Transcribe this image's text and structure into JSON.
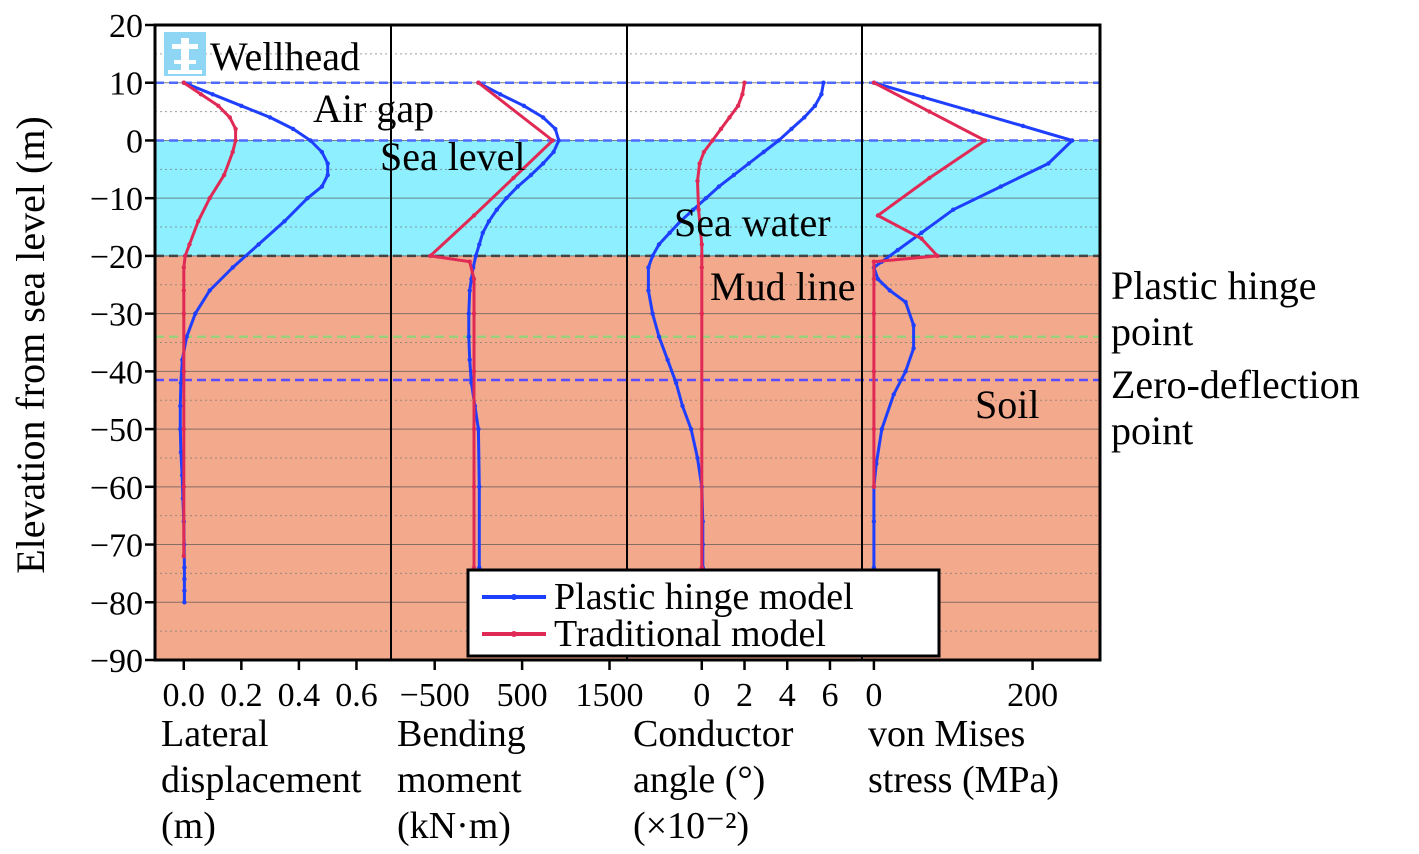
{
  "chart_data": {
    "type": "line",
    "y_axis": {
      "label": "Elevation from sea level (m)",
      "range": [
        -90,
        20
      ],
      "ticks": [
        20,
        10,
        0,
        -10,
        -20,
        -30,
        -40,
        -50,
        -60,
        -70,
        -80,
        -90
      ],
      "tick_labels": [
        "20",
        "10",
        "0",
        "−10",
        "−20",
        "−30",
        "−40",
        "−50",
        "−60",
        "−70",
        "−80",
        "−90"
      ]
    },
    "zones": [
      {
        "name": "Air gap",
        "from": 10,
        "to": 0,
        "color": "#ffffff"
      },
      {
        "name": "Sea water",
        "from": 0,
        "to": -20,
        "color": "#8ef0ff"
      },
      {
        "name": "Soil",
        "from": -20,
        "to": -90,
        "color": "#f3a98c"
      }
    ],
    "reference_lines": [
      {
        "name": "Wellhead",
        "y": 10,
        "color": "#4f6bff"
      },
      {
        "name": "Sea level",
        "y": 0,
        "color": "#4f6bff"
      },
      {
        "name": "Mud line",
        "y": -20,
        "color": "#444444"
      },
      {
        "name": "Plastic hinge point",
        "y": -34,
        "color": "#9bd07a"
      },
      {
        "name": "Zero-deflection point",
        "y": -41.5,
        "color": "#5a4dff"
      }
    ],
    "annotations": {
      "wellhead": "Wellhead",
      "air_gap": "Air gap",
      "sea_level": "Sea level",
      "sea_water": "Sea water",
      "mud_line": "Mud line",
      "soil": "Soil",
      "plastic_hinge_1": "Plastic hinge",
      "plastic_hinge_2": "point",
      "zero_deflection_1": "Zero-deflection",
      "zero_deflection_2": "point"
    },
    "legend": {
      "placement": "bottom-center",
      "entries": [
        {
          "name": "Plastic hinge model",
          "color": "#1f3fff"
        },
        {
          "name": "Traditional model",
          "color": "#e02a55"
        }
      ]
    },
    "panels": [
      {
        "id": "lateral",
        "xlabel_lines": [
          "Lateral",
          "displacement",
          "(m)"
        ],
        "xlim": [
          -0.1,
          0.72
        ],
        "xticks": [
          0.0,
          0.2,
          0.4,
          0.6
        ],
        "xtick_labels": [
          "0.0",
          "0.2",
          "0.4",
          "0.6"
        ],
        "series": [
          {
            "name": "Plastic hinge model",
            "x": [
              0,
              0.1,
              0.2,
              0.3,
              0.38,
              0.44,
              0.48,
              0.5,
              0.5,
              0.48,
              0.43,
              0.35,
              0.26,
              0.17,
              0.09,
              0.04,
              0.01,
              -0.005,
              -0.01,
              -0.012,
              -0.012,
              -0.01,
              -0.006,
              -0.003,
              0,
              0.001,
              0.002,
              0.002,
              0.002,
              0.002
            ],
            "y": [
              10,
              8,
              6,
              4,
              2,
              0,
              -2,
              -4,
              -6,
              -8,
              -10,
              -14,
              -18,
              -22,
              -26,
              -30,
              -34,
              -38,
              -42,
              -46,
              -50,
              -54,
              -58,
              -62,
              -66,
              -70,
              -74,
              -76,
              -78,
              -80
            ]
          },
          {
            "name": "Traditional model",
            "x": [
              0,
              0.06,
              0.12,
              0.16,
              0.18,
              0.18,
              0.17,
              0.14,
              0.09,
              0.05,
              0.02,
              0.005,
              0,
              0,
              0,
              0,
              0,
              0,
              0
            ],
            "y": [
              10,
              8,
              6,
              4,
              2,
              0,
              -2,
              -6,
              -10,
              -14,
              -18,
              -20,
              -22,
              -26,
              -30,
              -40,
              -50,
              -60,
              -72
            ]
          }
        ]
      },
      {
        "id": "bending",
        "xlabel_lines": [
          "Bending",
          "moment",
          "(kN·m)"
        ],
        "xlim": [
          -1000,
          1700
        ],
        "xticks": [
          -500,
          500,
          1500
        ],
        "xtick_labels": [
          "−500",
          "500",
          "1500"
        ],
        "series": [
          {
            "name": "Plastic hinge model",
            "x": [
              0,
              250,
              520,
              740,
              880,
              920,
              860,
              740,
              600,
              450,
              320,
              210,
              120,
              50,
              10,
              -30,
              -60,
              -80,
              -100,
              -110,
              -110,
              -100,
              -80,
              -40,
              0,
              10,
              10
            ],
            "y": [
              10,
              8,
              6,
              4,
              2,
              0,
              -2,
              -4,
              -6,
              -8,
              -10,
              -12,
              -14,
              -16,
              -18,
              -20,
              -22,
              -24,
              -26,
              -30,
              -34,
              -38,
              -42,
              -46,
              -50,
              -60,
              -74
            ]
          },
          {
            "name": "Traditional model",
            "x": [
              0,
              850,
              400,
              -50,
              -550,
              -100,
              -50,
              -50,
              -50,
              -50,
              -50,
              -50
            ],
            "y": [
              10,
              0,
              -6.5,
              -13,
              -20,
              -21,
              -24,
              -30,
              -40,
              -50,
              -60,
              -74
            ]
          }
        ]
      },
      {
        "id": "angle",
        "xlabel_lines": [
          "Conductor",
          "angle (°)",
          "(×10⁻²)"
        ],
        "xlim": [
          -3.5,
          7.5
        ],
        "xticks": [
          0,
          2,
          4,
          6
        ],
        "xtick_labels": [
          "0",
          "2",
          "4",
          "6"
        ],
        "series": [
          {
            "name": "Plastic hinge model",
            "x": [
              5.7,
              5.6,
              5.3,
              4.8,
              4.2,
              3.6,
              2.9,
              2.2,
              1.5,
              0.8,
              0.2,
              -0.4,
              -1.0,
              -1.5,
              -2.0,
              -2.3,
              -2.5,
              -2.5,
              -2.3,
              -2.0,
              -1.6,
              -1.2,
              -0.9,
              -0.5,
              -0.2,
              0,
              0.05,
              0.05,
              0.05
            ],
            "y": [
              10,
              8,
              6,
              4,
              2,
              0,
              -2,
              -4,
              -6,
              -8,
              -10,
              -12,
              -14,
              -16,
              -18,
              -20,
              -22,
              -26,
              -30,
              -34,
              -38,
              -42,
              -46,
              -50,
              -55,
              -60,
              -66,
              -70,
              -74
            ]
          },
          {
            "name": "Traditional model",
            "x": [
              2.0,
              1.9,
              1.7,
              1.3,
              0.9,
              0.5,
              0.1,
              -0.1,
              -0.2,
              -0.15,
              0,
              0,
              0,
              0,
              0,
              0
            ],
            "y": [
              10,
              8,
              6,
              4,
              2,
              0,
              -2,
              -4,
              -7,
              -12,
              -18,
              -20,
              -22,
              -30,
              -50,
              -74
            ]
          }
        ]
      },
      {
        "id": "stress",
        "xlabel_lines": [
          "von Mises",
          "stress (MPa)"
        ],
        "xlim": [
          -15,
          285
        ],
        "xticks": [
          0,
          200
        ],
        "xtick_labels": [
          "0",
          "200"
        ],
        "series": [
          {
            "name": "Plastic hinge model",
            "x": [
              0,
              62,
              125,
              188,
              250,
              220,
              160,
              100,
              60,
              30,
              10,
              0,
              5,
              20,
              40,
              50,
              50,
              40,
              25,
              10,
              3,
              0,
              0,
              0
            ],
            "y": [
              10,
              7.5,
              5,
              2.5,
              0,
              -4,
              -8,
              -12,
              -16,
              -19,
              -21,
              -22,
              -24,
              -26,
              -28,
              -32,
              -36,
              -40,
              -44,
              -50,
              -56,
              -60,
              -66,
              -74
            ]
          },
          {
            "name": "Traditional model",
            "x": [
              0,
              70,
              140,
              70,
              5,
              60,
              80,
              0,
              0,
              0,
              0,
              0,
              0
            ],
            "y": [
              10,
              5,
              0,
              -6.5,
              -13,
              -17,
              -20,
              -21,
              -24,
              -30,
              -40,
              -50,
              -60
            ]
          }
        ]
      }
    ]
  }
}
